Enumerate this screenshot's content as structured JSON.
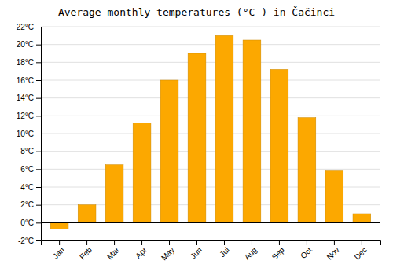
{
  "chart_data": {
    "type": "bar",
    "title": "Average monthly temperatures (°C ) in Čačinci",
    "categories": [
      "Jan",
      "Feb",
      "Mar",
      "Apr",
      "May",
      "Jun",
      "Jul",
      "Aug",
      "Sep",
      "Oct",
      "Nov",
      "Dec"
    ],
    "values": [
      -0.7,
      2.0,
      6.5,
      11.2,
      16.0,
      19.0,
      21.0,
      20.5,
      17.2,
      11.8,
      5.8,
      1.0
    ],
    "color": "#FCA800",
    "ylim": [
      -2,
      22
    ],
    "yticks": [
      {
        "value": -2,
        "label": "-2°C"
      },
      {
        "value": 0,
        "label": "0°C"
      },
      {
        "value": 2,
        "label": "2°C"
      },
      {
        "value": 4,
        "label": "4°C"
      },
      {
        "value": 6,
        "label": "6°C"
      },
      {
        "value": 8,
        "label": "8°C"
      },
      {
        "value": 10,
        "label": "10°C"
      },
      {
        "value": 12,
        "label": "12°C"
      },
      {
        "value": 14,
        "label": "14°C"
      },
      {
        "value": 16,
        "label": "16°C"
      },
      {
        "value": 18,
        "label": "18°C"
      },
      {
        "value": 20,
        "label": "20°C"
      },
      {
        "value": 22,
        "label": "22°C"
      }
    ],
    "grid": true
  }
}
